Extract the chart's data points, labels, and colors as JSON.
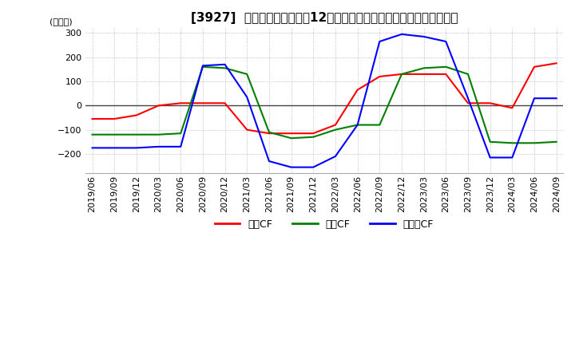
{
  "title": "[3927]  キャッシュフローの12か月移動合計の対前年同期増減額の推移",
  "ylabel": "(百万円)",
  "ylim": [
    -280,
    320
  ],
  "yticks": [
    -200,
    -100,
    0,
    100,
    200,
    300
  ],
  "legend_labels": [
    "営業CF",
    "投資CF",
    "フリーCF"
  ],
  "line_colors": [
    "#ff0000",
    "#008000",
    "#0000ff"
  ],
  "dates": [
    "2019/06",
    "2019/09",
    "2019/12",
    "2020/03",
    "2020/06",
    "2020/09",
    "2020/12",
    "2021/03",
    "2021/06",
    "2021/09",
    "2021/12",
    "2022/03",
    "2022/06",
    "2022/09",
    "2022/12",
    "2023/03",
    "2023/06",
    "2023/09",
    "2023/12",
    "2024/03",
    "2024/06",
    "2024/09"
  ],
  "eigyo_cf": [
    -55,
    -55,
    -40,
    0,
    10,
    10,
    10,
    -100,
    -115,
    -115,
    -115,
    -80,
    65,
    120,
    130,
    130,
    130,
    10,
    10,
    -10,
    160,
    175
  ],
  "toshi_cf": [
    -120,
    -120,
    -120,
    -120,
    -115,
    160,
    155,
    130,
    -110,
    -135,
    -130,
    -100,
    -80,
    -80,
    130,
    155,
    160,
    130,
    -150,
    -155,
    -155,
    -150
  ],
  "free_cf": [
    -175,
    -175,
    -175,
    -170,
    -170,
    165,
    170,
    35,
    -230,
    -255,
    -255,
    -210,
    -80,
    265,
    295,
    285,
    265,
    30,
    -215,
    -215,
    30,
    30
  ],
  "background_color": "#ffffff",
  "grid_color": "#b0b0b0",
  "grid_style": "dotted",
  "title_fontsize": 11,
  "label_fontsize": 8,
  "tick_fontsize": 8
}
